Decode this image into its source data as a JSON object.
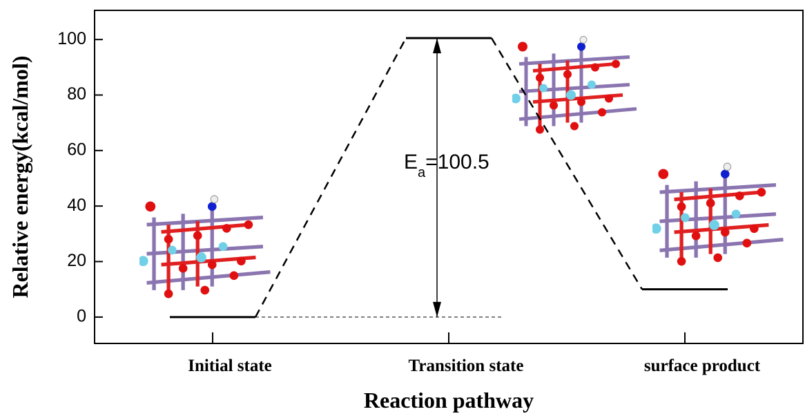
{
  "chart_data": {
    "type": "energy-profile",
    "x_label": "Reaction pathway",
    "y_label": "Relative energy(kcal/mol)",
    "categories": [
      "Initial state",
      "Transition state",
      "surface product"
    ],
    "values": [
      0,
      100.5,
      10
    ],
    "color": "#000000",
    "ylim": [
      -9.5,
      110.5
    ],
    "yticks": [
      0,
      20,
      40,
      60,
      80,
      100
    ],
    "annotation": {
      "symbol": "E",
      "subscript": "a",
      "text": "=100.5"
    }
  }
}
